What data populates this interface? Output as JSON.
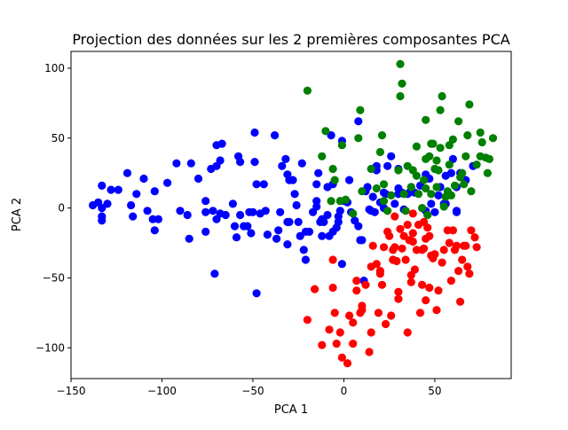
{
  "chart_data": {
    "type": "scatter",
    "title": "Projection des données sur les 2 premières composantes PCA",
    "xlabel": "PCA 1",
    "ylabel": "PCA 2",
    "xlim": [
      -150,
      92
    ],
    "ylim": [
      -122,
      112
    ],
    "xticks": [
      -150,
      -100,
      -50,
      0,
      50
    ],
    "yticks": [
      -100,
      -50,
      0,
      50,
      100
    ],
    "grid": false,
    "legend": "none",
    "series": [
      {
        "color": "#0000ff",
        "points": [
          [
            -138,
            2
          ],
          [
            -135,
            4
          ],
          [
            -133,
            -6
          ],
          [
            -133,
            -9
          ],
          [
            -133,
            16
          ],
          [
            -133,
            0
          ],
          [
            -130,
            3
          ],
          [
            -128,
            13
          ],
          [
            -124,
            13
          ],
          [
            -119,
            25
          ],
          [
            -117,
            2
          ],
          [
            -116,
            -6
          ],
          [
            -114,
            10
          ],
          [
            -110,
            21
          ],
          [
            -108,
            -2
          ],
          [
            -105,
            -8
          ],
          [
            -104,
            -16
          ],
          [
            -104,
            12
          ],
          [
            -102,
            -8
          ],
          [
            -97,
            18
          ],
          [
            -92,
            32
          ],
          [
            -90,
            -2
          ],
          [
            -86,
            -5
          ],
          [
            -85,
            -22
          ],
          [
            -84,
            32
          ],
          [
            -80,
            21
          ],
          [
            -76,
            -3
          ],
          [
            -76,
            5
          ],
          [
            -76,
            -17
          ],
          [
            -73,
            28
          ],
          [
            -72,
            -2
          ],
          [
            -71,
            -47
          ],
          [
            -70,
            -8
          ],
          [
            -70,
            30
          ],
          [
            -70,
            45
          ],
          [
            -68,
            34
          ],
          [
            -68,
            -4
          ],
          [
            -67,
            46
          ],
          [
            -65,
            -5
          ],
          [
            -61,
            3
          ],
          [
            -60,
            -13
          ],
          [
            -59,
            -21
          ],
          [
            -58,
            37
          ],
          [
            -57,
            33
          ],
          [
            -57,
            -5
          ],
          [
            -55,
            -13
          ],
          [
            -53,
            -13
          ],
          [
            -52,
            -3
          ],
          [
            -51,
            -18
          ],
          [
            -50,
            -3
          ],
          [
            -49,
            54
          ],
          [
            -49,
            33
          ],
          [
            -48,
            -61
          ],
          [
            -48,
            17
          ],
          [
            -46,
            -4
          ],
          [
            -44,
            17
          ],
          [
            -43,
            -2
          ],
          [
            -42,
            -19
          ],
          [
            -38,
            52
          ],
          [
            -37,
            -22
          ],
          [
            -36,
            -16
          ],
          [
            -35,
            -3
          ],
          [
            -34,
            30
          ],
          [
            -32,
            35
          ],
          [
            -31,
            24
          ],
          [
            -31,
            -26
          ],
          [
            -31,
            -10
          ],
          [
            -30,
            20
          ],
          [
            -30,
            -10
          ],
          [
            -28,
            20
          ],
          [
            -27,
            10
          ],
          [
            -26,
            2
          ],
          [
            -25,
            -10
          ],
          [
            -24,
            -20
          ],
          [
            -23,
            32
          ],
          [
            -22,
            -30
          ],
          [
            -21,
            -37
          ],
          [
            -21,
            -17
          ],
          [
            -19,
            -17
          ],
          [
            -17,
            -3
          ],
          [
            -15,
            1
          ],
          [
            -15,
            5
          ],
          [
            -15,
            17
          ],
          [
            -14,
            25
          ],
          [
            -13,
            -10
          ],
          [
            -12,
            -20
          ],
          [
            -12,
            -8
          ],
          [
            -11,
            -10
          ],
          [
            -9,
            15
          ],
          [
            -9,
            -5
          ],
          [
            -8,
            -20
          ],
          [
            -7,
            52
          ],
          [
            -6,
            17
          ],
          [
            -6,
            -17
          ],
          [
            -4,
            -14
          ],
          [
            -3,
            -10
          ],
          [
            -3,
            -6
          ],
          [
            -2,
            -2
          ],
          [
            -1,
            48
          ],
          [
            -1,
            -40
          ],
          [
            0,
            5
          ],
          [
            2,
            4
          ],
          [
            3,
            20
          ],
          [
            4,
            -3
          ],
          [
            6,
            -9
          ],
          [
            8,
            62
          ],
          [
            8,
            -13
          ],
          [
            9,
            -23
          ],
          [
            10,
            -23
          ],
          [
            11,
            -52
          ],
          [
            12,
            12
          ],
          [
            13,
            15
          ],
          [
            14,
            -1
          ],
          [
            15,
            -2
          ],
          [
            16,
            8
          ],
          [
            17,
            -3
          ],
          [
            18,
            30
          ],
          [
            18,
            27
          ],
          [
            20,
            4
          ],
          [
            22,
            11
          ],
          [
            22,
            0
          ],
          [
            23,
            10
          ],
          [
            24,
            30
          ],
          [
            26,
            37
          ],
          [
            28,
            3
          ],
          [
            30,
            14
          ],
          [
            30,
            10
          ],
          [
            30,
            28
          ],
          [
            32,
            11
          ],
          [
            33,
            -1
          ],
          [
            35,
            10
          ],
          [
            36,
            11
          ],
          [
            37,
            15
          ],
          [
            39,
            11
          ],
          [
            42,
            16
          ],
          [
            45,
            24
          ],
          [
            45,
            -2
          ],
          [
            47,
            21
          ],
          [
            48,
            3
          ],
          [
            50,
            -3
          ],
          [
            52,
            9
          ],
          [
            53,
            15
          ],
          [
            55,
            3
          ],
          [
            56,
            3
          ],
          [
            56,
            23
          ],
          [
            59,
            25
          ],
          [
            60,
            35
          ],
          [
            62,
            15
          ],
          [
            62,
            -2
          ],
          [
            62,
            -3
          ],
          [
            64,
            25
          ],
          [
            67,
            20
          ],
          [
            71,
            30
          ]
        ]
      },
      {
        "color": "#008000",
        "points": [
          [
            -20,
            84
          ],
          [
            -12,
            37
          ],
          [
            -10,
            55
          ],
          [
            -7,
            5
          ],
          [
            -6,
            28
          ],
          [
            -5,
            20
          ],
          [
            -2,
            5
          ],
          [
            -1,
            45
          ],
          [
            1,
            6
          ],
          [
            5,
            -4
          ],
          [
            8,
            50
          ],
          [
            9,
            70
          ],
          [
            10,
            12
          ],
          [
            15,
            28
          ],
          [
            18,
            14
          ],
          [
            20,
            40
          ],
          [
            21,
            52
          ],
          [
            22,
            17
          ],
          [
            22,
            5
          ],
          [
            24,
            -2
          ],
          [
            26,
            9
          ],
          [
            27,
            -37
          ],
          [
            30,
            27
          ],
          [
            31,
            103
          ],
          [
            31,
            80
          ],
          [
            32,
            89
          ],
          [
            33,
            10
          ],
          [
            34,
            -2
          ],
          [
            35,
            30
          ],
          [
            37,
            15
          ],
          [
            38,
            27
          ],
          [
            40,
            23
          ],
          [
            40,
            44
          ],
          [
            41,
            10
          ],
          [
            43,
            0
          ],
          [
            44,
            20
          ],
          [
            45,
            14
          ],
          [
            45,
            63
          ],
          [
            45,
            35
          ],
          [
            46,
            -5
          ],
          [
            47,
            37
          ],
          [
            48,
            46
          ],
          [
            48,
            10
          ],
          [
            49,
            46
          ],
          [
            50,
            28
          ],
          [
            51,
            15
          ],
          [
            51,
            34
          ],
          [
            52,
            27
          ],
          [
            53,
            43
          ],
          [
            53,
            70
          ],
          [
            54,
            80
          ],
          [
            55,
            1
          ],
          [
            56,
            8
          ],
          [
            57,
            12
          ],
          [
            58,
            31
          ],
          [
            58,
            45
          ],
          [
            59,
            9
          ],
          [
            60,
            49
          ],
          [
            61,
            16
          ],
          [
            63,
            62
          ],
          [
            64,
            22
          ],
          [
            65,
            25
          ],
          [
            66,
            17
          ],
          [
            67,
            37
          ],
          [
            68,
            52
          ],
          [
            69,
            74
          ],
          [
            70,
            12
          ],
          [
            73,
            31
          ],
          [
            75,
            54
          ],
          [
            75,
            37
          ],
          [
            76,
            47
          ],
          [
            78,
            36
          ],
          [
            79,
            25
          ],
          [
            80,
            35
          ],
          [
            82,
            50
          ]
        ]
      },
      {
        "color": "#ff0000",
        "points": [
          [
            -20,
            -80
          ],
          [
            -16,
            -58
          ],
          [
            -12,
            -98
          ],
          [
            -8,
            -87
          ],
          [
            -6,
            -37
          ],
          [
            -6,
            -57
          ],
          [
            -5,
            -75
          ],
          [
            -4,
            -97
          ],
          [
            -2,
            -89
          ],
          [
            -1,
            -107
          ],
          [
            2,
            -111
          ],
          [
            3,
            -77
          ],
          [
            5,
            -97
          ],
          [
            5,
            -82
          ],
          [
            7,
            -59
          ],
          [
            7,
            -52
          ],
          [
            9,
            -75
          ],
          [
            10,
            -73
          ],
          [
            10,
            -70
          ],
          [
            12,
            -55
          ],
          [
            14,
            -103
          ],
          [
            15,
            -42
          ],
          [
            15,
            -89
          ],
          [
            16,
            -27
          ],
          [
            18,
            -40
          ],
          [
            19,
            -75
          ],
          [
            20,
            -45
          ],
          [
            20,
            -47
          ],
          [
            21,
            -55
          ],
          [
            22,
            -28
          ],
          [
            23,
            -83
          ],
          [
            24,
            -17
          ],
          [
            25,
            -20
          ],
          [
            26,
            -77
          ],
          [
            27,
            -37
          ],
          [
            27,
            -30
          ],
          [
            28,
            -6
          ],
          [
            28,
            -28
          ],
          [
            29,
            -38
          ],
          [
            30,
            -60
          ],
          [
            30,
            -65
          ],
          [
            31,
            -15
          ],
          [
            32,
            -29
          ],
          [
            33,
            -20
          ],
          [
            34,
            -37
          ],
          [
            35,
            -89
          ],
          [
            35,
            -12
          ],
          [
            36,
            -23
          ],
          [
            37,
            -48
          ],
          [
            37,
            -53
          ],
          [
            38,
            -24
          ],
          [
            38,
            -18
          ],
          [
            38,
            -4
          ],
          [
            39,
            -44
          ],
          [
            40,
            -30
          ],
          [
            41,
            -12
          ],
          [
            42,
            -75
          ],
          [
            43,
            -55
          ],
          [
            43,
            -30
          ],
          [
            44,
            -29
          ],
          [
            44,
            -10
          ],
          [
            45,
            -66
          ],
          [
            45,
            -22
          ],
          [
            46,
            -14
          ],
          [
            47,
            -20
          ],
          [
            47,
            -57
          ],
          [
            48,
            -34
          ],
          [
            49,
            -36
          ],
          [
            50,
            -33
          ],
          [
            51,
            -73
          ],
          [
            52,
            -59
          ],
          [
            54,
            -39
          ],
          [
            55,
            -30
          ],
          [
            57,
            -16
          ],
          [
            58,
            -25
          ],
          [
            59,
            -52
          ],
          [
            60,
            -16
          ],
          [
            61,
            -30
          ],
          [
            62,
            -27
          ],
          [
            63,
            -45
          ],
          [
            64,
            -67
          ],
          [
            65,
            -37
          ],
          [
            66,
            -27
          ],
          [
            67,
            -27
          ],
          [
            68,
            -42
          ],
          [
            69,
            -47
          ],
          [
            70,
            -16
          ],
          [
            72,
            -21
          ],
          [
            73,
            -28
          ]
        ]
      }
    ]
  }
}
